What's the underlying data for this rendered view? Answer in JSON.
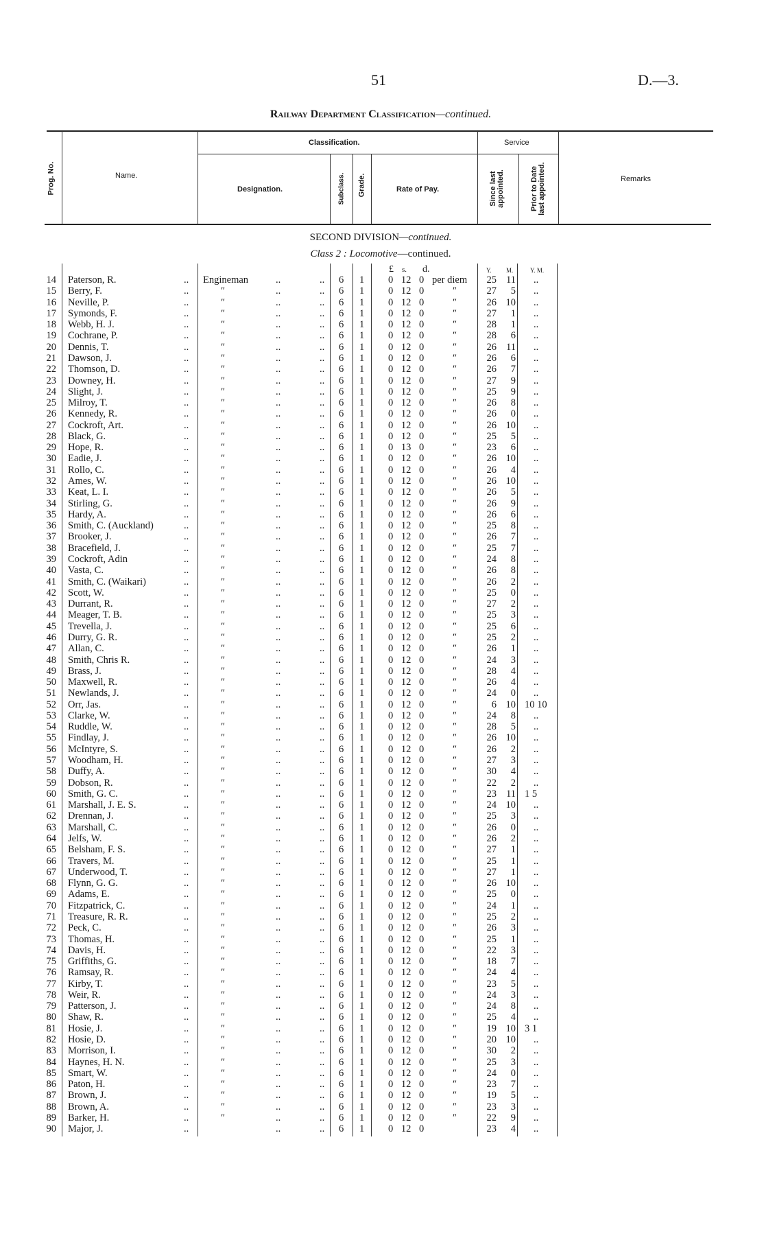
{
  "page_number": "51",
  "doc_ref": "D.—3.",
  "title": {
    "main": "Railway Department Classification",
    "suffix": "—continued."
  },
  "headers": {
    "prog_no": "Prog. No.",
    "name": "Name.",
    "classification": "Classification.",
    "designation": "Designation.",
    "subclass": "Subclass.",
    "grade": "Grade.",
    "rate_of_pay": "Rate of Pay.",
    "service": "Service",
    "since_last": "Since last appointed.",
    "prior_to_date": "Prior to Date last appointed.",
    "remarks": "Remarks"
  },
  "section": {
    "division": "SECOND DIVISION",
    "division_suffix": "—continued.",
    "class_label": "Class 2 :",
    "class_name": "Locomotive",
    "class_suffix": "—continued."
  },
  "units": {
    "pounds": "£",
    "shillings": "s.",
    "pence": "d.",
    "years": "Y.",
    "months": "M.",
    "prior": "Y. M."
  },
  "leader": "..",
  "rows": [
    [
      "14",
      "Paterson, R.",
      "Engineman",
      "6",
      "1",
      "0 12 0",
      "per diem",
      "25",
      "11",
      ".."
    ],
    [
      "15",
      "Berry, F.",
      "″",
      "6",
      "1",
      "0 12 0",
      "″",
      "27",
      "5",
      ".."
    ],
    [
      "16",
      "Neville, P.",
      "″",
      "6",
      "1",
      "0 12 0",
      "″",
      "26",
      "10",
      ".."
    ],
    [
      "17",
      "Symonds, F.",
      "″",
      "6",
      "1",
      "0 12 0",
      "″",
      "27",
      "1",
      ".."
    ],
    [
      "18",
      "Webb, H. J.",
      "″",
      "6",
      "1",
      "0 12 0",
      "″",
      "28",
      "1",
      ".."
    ],
    [
      "19",
      "Cochrane, P.",
      "″",
      "6",
      "1",
      "0 12 0",
      "″",
      "28",
      "6",
      ".."
    ],
    [
      "20",
      "Dennis, T.",
      "″",
      "6",
      "1",
      "0 12 0",
      "″",
      "26",
      "11",
      ".."
    ],
    [
      "21",
      "Dawson, J.",
      "″",
      "6",
      "1",
      "0 12 0",
      "″",
      "26",
      "6",
      ".."
    ],
    [
      "22",
      "Thomson, D.",
      "″",
      "6",
      "1",
      "0 12 0",
      "″",
      "26",
      "7",
      ".."
    ],
    [
      "23",
      "Downey, H.",
      "″",
      "6",
      "1",
      "0 12 0",
      "″",
      "27",
      "9",
      ".."
    ],
    [
      "24",
      "Slight, J.",
      "″",
      "6",
      "1",
      "0 12 0",
      "″",
      "25",
      "9",
      ".."
    ],
    [
      "25",
      "Milroy, T.",
      "″",
      "6",
      "1",
      "0 12 0",
      "″",
      "26",
      "8",
      ".."
    ],
    [
      "26",
      "Kennedy, R.",
      "″",
      "6",
      "1",
      "0 12 0",
      "″",
      "26",
      "0",
      ".."
    ],
    [
      "27",
      "Cockroft, Art.",
      "″",
      "6",
      "1",
      "0 12 0",
      "″",
      "26",
      "10",
      ".."
    ],
    [
      "28",
      "Black, G.",
      "″",
      "6",
      "1",
      "0 12 0",
      "″",
      "25",
      "5",
      ".."
    ],
    [
      "29",
      "Hope, R.",
      "″",
      "6",
      "1",
      "0 13 0",
      "″",
      "23",
      "6",
      ".."
    ],
    [
      "30",
      "Eadie, J.",
      "″",
      "6",
      "1",
      "0 12 0",
      "″",
      "26",
      "10",
      ".."
    ],
    [
      "31",
      "Rollo, C.",
      "″",
      "6",
      "1",
      "0 12 0",
      "″",
      "26",
      "4",
      ".."
    ],
    [
      "32",
      "Ames, W.",
      "″",
      "6",
      "1",
      "0 12 0",
      "″",
      "26",
      "10",
      ".."
    ],
    [
      "33",
      "Keat, L. I.",
      "″",
      "6",
      "1",
      "0 12 0",
      "″",
      "26",
      "5",
      ".."
    ],
    [
      "34",
      "Stirling, G.",
      "″",
      "6",
      "1",
      "0 12 0",
      "″",
      "26",
      "9",
      ".."
    ],
    [
      "35",
      "Hardy, A.",
      "″",
      "6",
      "1",
      "0 12 0",
      "″",
      "26",
      "6",
      ".."
    ],
    [
      "36",
      "Smith, C. (Auckland)",
      "″",
      "6",
      "1",
      "0 12 0",
      "″",
      "25",
      "8",
      ".."
    ],
    [
      "37",
      "Brooker, J.",
      "″",
      "6",
      "1",
      "0 12 0",
      "″",
      "26",
      "7",
      ".."
    ],
    [
      "38",
      "Bracefield, J.",
      "″",
      "6",
      "1",
      "0 12 0",
      "″",
      "25",
      "7",
      ".."
    ],
    [
      "39",
      "Cockroft, Adin",
      "″",
      "6",
      "1",
      "0 12 0",
      "″",
      "24",
      "8",
      ".."
    ],
    [
      "40",
      "Vasta, C.",
      "″",
      "6",
      "1",
      "0 12 0",
      "″",
      "26",
      "8",
      ".."
    ],
    [
      "41",
      "Smith, C. (Waikari)",
      "″",
      "6",
      "1",
      "0 12 0",
      "″",
      "26",
      "2",
      ".."
    ],
    [
      "42",
      "Scott, W.",
      "″",
      "6",
      "1",
      "0 12 0",
      "″",
      "25",
      "0",
      ".."
    ],
    [
      "43",
      "Durrant, R.",
      "″",
      "6",
      "1",
      "0 12 0",
      "″",
      "27",
      "2",
      ".."
    ],
    [
      "44",
      "Meager, T. B.",
      "″",
      "6",
      "1",
      "0 12 0",
      "″",
      "25",
      "3",
      ".."
    ],
    [
      "45",
      "Trevella, J.",
      "″",
      "6",
      "1",
      "0 12 0",
      "″",
      "25",
      "6",
      ".."
    ],
    [
      "46",
      "Durry, G. R.",
      "″",
      "6",
      "1",
      "0 12 0",
      "″",
      "25",
      "2",
      ".."
    ],
    [
      "47",
      "Allan, C.",
      "″",
      "6",
      "1",
      "0 12 0",
      "″",
      "26",
      "1",
      ".."
    ],
    [
      "48",
      "Smith, Chris R.",
      "″",
      "6",
      "1",
      "0 12 0",
      "″",
      "24",
      "3",
      ".."
    ],
    [
      "49",
      "Brass, J.",
      "″",
      "6",
      "1",
      "0 12 0",
      "″",
      "28",
      "4",
      ".."
    ],
    [
      "50",
      "Maxwell, R.",
      "″",
      "6",
      "1",
      "0 12 0",
      "″",
      "26",
      "4",
      ".."
    ],
    [
      "51",
      "Newlands, J.",
      "″",
      "6",
      "1",
      "0 12 0",
      "″",
      "24",
      "0",
      ".."
    ],
    [
      "52",
      "Orr, Jas.",
      "″",
      "6",
      "1",
      "0 12 0",
      "″",
      "6",
      "10",
      "10 10"
    ],
    [
      "53",
      "Clarke, W.",
      "″",
      "6",
      "1",
      "0 12 0",
      "″",
      "24",
      "8",
      ".."
    ],
    [
      "54",
      "Ruddle, W.",
      "″",
      "6",
      "1",
      "0 12 0",
      "″",
      "28",
      "5",
      ".."
    ],
    [
      "55",
      "Findlay, J.",
      "″",
      "6",
      "1",
      "0 12 0",
      "″",
      "26",
      "10",
      ".."
    ],
    [
      "56",
      "McIntyre, S.",
      "″",
      "6",
      "1",
      "0 12 0",
      "″",
      "26",
      "2",
      ".."
    ],
    [
      "57",
      "Woodham, H.",
      "″",
      "6",
      "1",
      "0 12 0",
      "″",
      "27",
      "3",
      ".."
    ],
    [
      "58",
      "Duffy, A.",
      "″",
      "6",
      "1",
      "0 12 0",
      "″",
      "30",
      "4",
      ".."
    ],
    [
      "59",
      "Dobson, R.",
      "″",
      "6",
      "1",
      "0 12 0",
      "″",
      "22",
      "2",
      ".."
    ],
    [
      "60",
      "Smith, G. C.",
      "″",
      "6",
      "1",
      "0 12 0",
      "″",
      "23",
      "11",
      "1 5"
    ],
    [
      "61",
      "Marshall, J. E. S.",
      "″",
      "6",
      "1",
      "0 12 0",
      "″",
      "24",
      "10",
      ".."
    ],
    [
      "62",
      "Drennan, J.",
      "″",
      "6",
      "1",
      "0 12 0",
      "″",
      "25",
      "3",
      ".."
    ],
    [
      "63",
      "Marshall, C.",
      "″",
      "6",
      "1",
      "0 12 0",
      "″",
      "26",
      "0",
      ".."
    ],
    [
      "64",
      "Jelfs, W.",
      "″",
      "6",
      "1",
      "0 12 0",
      "″",
      "26",
      "2",
      ".."
    ],
    [
      "65",
      "Belsham, F. S.",
      "″",
      "6",
      "1",
      "0 12 0",
      "″",
      "27",
      "1",
      ".."
    ],
    [
      "66",
      "Travers, M.",
      "″",
      "6",
      "1",
      "0 12 0",
      "″",
      "25",
      "1",
      ".."
    ],
    [
      "67",
      "Underwood, T.",
      "″",
      "6",
      "1",
      "0 12 0",
      "″",
      "27",
      "1",
      ".."
    ],
    [
      "68",
      "Flynn, G. G.",
      "″",
      "6",
      "1",
      "0 12 0",
      "″",
      "26",
      "10",
      ".."
    ],
    [
      "69",
      "Adams, E.",
      "″",
      "6",
      "1",
      "0 12 0",
      "″",
      "25",
      "0",
      ".."
    ],
    [
      "70",
      "Fitzpatrick, C.",
      "″",
      "6",
      "1",
      "0 12 0",
      "″",
      "24",
      "1",
      ".."
    ],
    [
      "71",
      "Treasure, R. R.",
      "″",
      "6",
      "1",
      "0 12 0",
      "″",
      "25",
      "2",
      ".."
    ],
    [
      "72",
      "Peck, C.",
      "″",
      "6",
      "1",
      "0 12 0",
      "″",
      "26",
      "3",
      ".."
    ],
    [
      "73",
      "Thomas, H.",
      "″",
      "6",
      "1",
      "0 12 0",
      "″",
      "25",
      "1",
      ".."
    ],
    [
      "74",
      "Davis, H.",
      "″",
      "6",
      "1",
      "0 12 0",
      "″",
      "22",
      "3",
      ".."
    ],
    [
      "75",
      "Griffiths, G.",
      "″",
      "6",
      "1",
      "0 12 0",
      "″",
      "18",
      "7",
      ".."
    ],
    [
      "76",
      "Ramsay, R.",
      "″",
      "6",
      "1",
      "0 12 0",
      "″",
      "24",
      "4",
      ".."
    ],
    [
      "77",
      "Kirby, T.",
      "″",
      "6",
      "1",
      "0 12 0",
      "″",
      "23",
      "5",
      ".."
    ],
    [
      "78",
      "Weir, R.",
      "″",
      "6",
      "1",
      "0 12 0",
      "″",
      "24",
      "3",
      ".."
    ],
    [
      "79",
      "Patterson, J.",
      "″",
      "6",
      "1",
      "0 12 0",
      "″",
      "24",
      "8",
      ".."
    ],
    [
      "80",
      "Shaw, R.",
      "″",
      "6",
      "1",
      "0 12 0",
      "″",
      "25",
      "4",
      ".."
    ],
    [
      "81",
      "Hosie, J.",
      "″",
      "6",
      "1",
      "0 12 0",
      "″",
      "19",
      "10",
      "3 1"
    ],
    [
      "82",
      "Hosie, D.",
      "″",
      "6",
      "1",
      "0 12 0",
      "″",
      "20",
      "10",
      ".."
    ],
    [
      "83",
      "Morrison, I.",
      "″",
      "6",
      "1",
      "0 12 0",
      "″",
      "30",
      "2",
      ".."
    ],
    [
      "84",
      "Haynes, H. N.",
      "″",
      "6",
      "1",
      "0 12 0",
      "″",
      "25",
      "3",
      ".."
    ],
    [
      "85",
      "Smart, W.",
      "″",
      "6",
      "1",
      "0 12 0",
      "″",
      "24",
      "0",
      ".."
    ],
    [
      "86",
      "Paton, H.",
      "″",
      "6",
      "1",
      "0 12 0",
      "″",
      "23",
      "7",
      ".."
    ],
    [
      "87",
      "Brown, J.",
      "″",
      "6",
      "1",
      "0 12 0",
      "″",
      "19",
      "5",
      ".."
    ],
    [
      "88",
      "Brown, A.",
      "″",
      "6",
      "1",
      "0 12 0",
      "″",
      "23",
      "3",
      ".."
    ],
    [
      "89",
      "Barker, H.",
      "″",
      "6",
      "1",
      "0 12 0",
      "″",
      "22",
      "9",
      ".."
    ],
    [
      "90",
      "Major, J.",
      "",
      "6",
      "1",
      "0 12 0",
      "",
      "23",
      "4",
      ".."
    ]
  ]
}
